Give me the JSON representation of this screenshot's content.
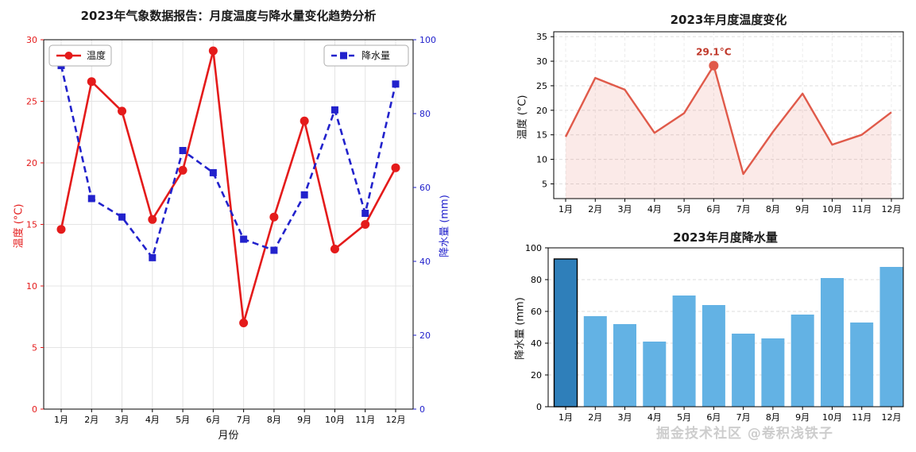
{
  "watermark": "掘金技术社区 @卷积浅铁子",
  "chart_data": [
    {
      "id": "main-combined",
      "type": "line",
      "title": "2023年气象数据报告：月度温度与降水量变化趋势分析",
      "xlabel": "月份",
      "categories": [
        "1月",
        "2月",
        "3月",
        "4月",
        "5月",
        "6月",
        "7月",
        "8月",
        "9月",
        "10月",
        "11月",
        "12月"
      ],
      "series": [
        {
          "name": "温度",
          "axis": "left",
          "color": "#e41b1b",
          "line_style": "solid",
          "marker": "circle",
          "values": [
            14.6,
            26.6,
            24.2,
            15.4,
            19.4,
            29.1,
            7.0,
            15.6,
            23.4,
            13.0,
            15.0,
            19.6
          ]
        },
        {
          "name": "降水量",
          "axis": "right",
          "color": "#2222cc",
          "line_style": "dashed",
          "marker": "square",
          "values": [
            93,
            57,
            52,
            41,
            70,
            64,
            46,
            43,
            58,
            81,
            53,
            88
          ]
        }
      ],
      "left_axis": {
        "label": "温度 (°C)",
        "color": "#e41b1b",
        "min": 0,
        "max": 30,
        "ticks": [
          0,
          5,
          10,
          15,
          20,
          25,
          30
        ]
      },
      "right_axis": {
        "label": "降水量 (mm)",
        "color": "#2222cc",
        "min": 0,
        "max": 100,
        "ticks": [
          0,
          20,
          40,
          60,
          80,
          100
        ]
      },
      "legend_position": "top-left-and-top-right",
      "grid": true
    },
    {
      "id": "temperature-monthly",
      "type": "area",
      "title": "2023年月度温度变化",
      "ylabel": "温度 (°C)",
      "categories": [
        "1月",
        "2月",
        "3月",
        "4月",
        "5月",
        "6月",
        "7月",
        "8月",
        "9月",
        "10月",
        "11月",
        "12月"
      ],
      "values": [
        14.6,
        26.6,
        24.2,
        15.4,
        19.4,
        29.1,
        7.0,
        15.6,
        23.4,
        13.0,
        15.0,
        19.6
      ],
      "ylim": [
        2,
        36
      ],
      "ticks": [
        5,
        10,
        15,
        20,
        25,
        30,
        35
      ],
      "color": "#e05a4a",
      "fill_color": "rgba(224,90,74,0.13)",
      "grid": true,
      "annotation": {
        "text": "29.1°C",
        "index": 5,
        "value": 29.1,
        "color": "#c0392b"
      }
    },
    {
      "id": "precipitation-monthly",
      "type": "bar",
      "title": "2023年月度降水量",
      "ylabel": "降水量 (mm)",
      "categories": [
        "1月",
        "2月",
        "3月",
        "4月",
        "5月",
        "6月",
        "7月",
        "8月",
        "9月",
        "10月",
        "11月",
        "12月"
      ],
      "values": [
        93,
        57,
        52,
        41,
        70,
        64,
        46,
        43,
        58,
        81,
        53,
        88
      ],
      "ylim": [
        0,
        100
      ],
      "ticks": [
        0,
        20,
        40,
        60,
        80,
        100
      ],
      "bar_color": "#63b2e4",
      "highlight_index": 0,
      "highlight_color": "#2f7fba",
      "grid": true
    }
  ]
}
